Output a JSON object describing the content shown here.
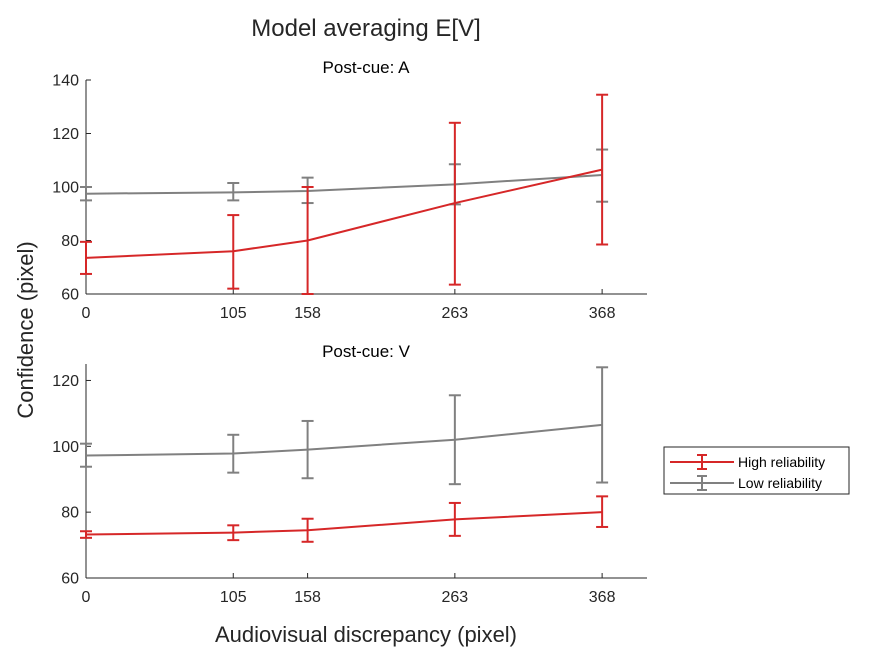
{
  "title": "Model averaging E[V]",
  "ylabel": "Confidence (pixel)",
  "xlabel": "Audiovisual discrepancy (pixel)",
  "legend": {
    "placement": "right",
    "entries": [
      {
        "name": "High reliability",
        "color": "#d62728"
      },
      {
        "name": "Low reliability",
        "color": "#808080"
      }
    ]
  },
  "chart_data": [
    {
      "type": "line",
      "title": "Post-cue: A",
      "x": [
        0,
        105,
        158,
        263,
        368
      ],
      "xticks": [
        0,
        105,
        158,
        263,
        368
      ],
      "xlim": [
        0,
        400
      ],
      "ylim": [
        60,
        140
      ],
      "yticks": [
        60,
        80,
        100,
        120,
        140
      ],
      "series": [
        {
          "name": "High reliability",
          "color": "#d62728",
          "values": [
            73.5,
            76,
            80,
            94,
            106.5
          ],
          "err_low": [
            67.5,
            62,
            60,
            63.5,
            78.5
          ],
          "err_high": [
            79.5,
            89.5,
            100,
            124,
            134.5
          ]
        },
        {
          "name": "Low reliability",
          "color": "#808080",
          "values": [
            97.5,
            98,
            98.5,
            101,
            104.5
          ],
          "err_low": [
            95,
            95,
            94,
            93.5,
            94.5
          ],
          "err_high": [
            100,
            101.5,
            103.5,
            108.5,
            114
          ]
        }
      ]
    },
    {
      "type": "line",
      "title": "Post-cue: V",
      "x": [
        0,
        105,
        158,
        263,
        368
      ],
      "xticks": [
        0,
        105,
        158,
        263,
        368
      ],
      "xlim": [
        0,
        400
      ],
      "ylim": [
        60,
        125
      ],
      "yticks": [
        60,
        80,
        100,
        120
      ],
      "series": [
        {
          "name": "High reliability",
          "color": "#d62728",
          "values": [
            73.2,
            73.8,
            74.5,
            77.8,
            80
          ],
          "err_low": [
            72.2,
            71.5,
            71,
            72.8,
            75.5
          ],
          "err_high": [
            74.2,
            76,
            78,
            82.8,
            84.8
          ]
        },
        {
          "name": "Low reliability",
          "color": "#808080",
          "values": [
            97.2,
            97.8,
            99,
            102,
            106.5
          ],
          "err_low": [
            93.8,
            92,
            90.3,
            88.5,
            89
          ],
          "err_high": [
            100.8,
            103.5,
            107.7,
            115.5,
            124
          ]
        }
      ]
    }
  ]
}
